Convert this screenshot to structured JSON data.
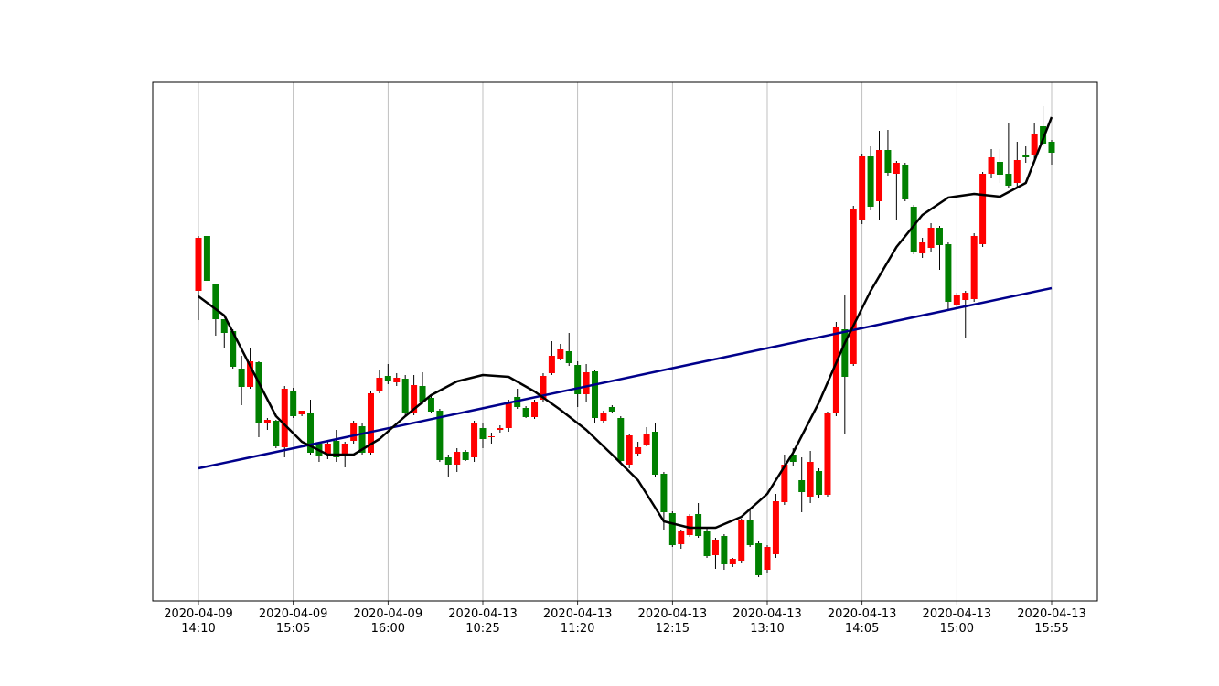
{
  "chart_data": {
    "type": "candlestick",
    "categories": [
      "2020-04-09\n14:10",
      null,
      null,
      null,
      null,
      null,
      null,
      null,
      null,
      null,
      null,
      "2020-04-09\n15:05",
      null,
      null,
      null,
      null,
      null,
      null,
      null,
      null,
      null,
      null,
      "2020-04-09\n16:00",
      null,
      null,
      null,
      null,
      null,
      null,
      null,
      null,
      null,
      null,
      "2020-04-13\n10:25",
      null,
      null,
      null,
      null,
      null,
      null,
      null,
      null,
      null,
      null,
      "2020-04-13\n11:20",
      null,
      null,
      null,
      null,
      null,
      null,
      null,
      null,
      null,
      null,
      "2020-04-13\n12:15",
      null,
      null,
      null,
      null,
      null,
      null,
      null,
      null,
      null,
      null,
      "2020-04-13\n13:10",
      null,
      null,
      null,
      null,
      null,
      null,
      null,
      null,
      null,
      null,
      "2020-04-13\n14:05",
      null,
      null,
      null,
      null,
      null,
      null,
      null,
      null,
      null,
      null,
      "2020-04-13\n15:00",
      null,
      null,
      null,
      null,
      null,
      null,
      null,
      null,
      null,
      null,
      "2020-04-13\n15:55"
    ],
    "open": [
      682,
      742,
      689,
      651,
      638,
      597,
      577,
      604,
      537,
      540,
      511,
      572,
      547,
      549,
      515,
      503,
      518,
      501,
      518,
      534,
      505,
      572,
      589,
      582,
      586,
      549,
      578,
      565,
      551,
      500,
      492,
      506,
      500,
      532,
      522,
      530,
      532,
      566,
      554,
      544,
      563,
      592,
      608,
      616,
      601,
      569,
      594,
      540,
      555,
      543,
      492,
      504,
      514,
      528,
      482,
      439,
      405,
      415,
      438,
      420,
      393,
      414,
      383,
      387,
      431,
      406,
      377,
      394,
      451,
      503,
      475,
      457,
      485,
      459,
      549,
      640,
      602,
      760,
      829,
      780,
      836,
      810,
      820,
      774,
      723,
      729,
      751,
      733,
      667,
      672,
      673,
      733,
      810,
      823,
      810,
      800,
      831,
      831,
      862,
      845
    ],
    "high": [
      742,
      742,
      689,
      651,
      640,
      611,
      620,
      605,
      543,
      541,
      578,
      576,
      551,
      563,
      517,
      517,
      530,
      517,
      540,
      537,
      572,
      595,
      602,
      592,
      590,
      590,
      593,
      568,
      553,
      503,
      510,
      508,
      540,
      537,
      527,
      535,
      563,
      575,
      556,
      563,
      592,
      627,
      624,
      636,
      605,
      602,
      596,
      551,
      557,
      545,
      526,
      517,
      533,
      538,
      484,
      441,
      421,
      438,
      450,
      422,
      412,
      416,
      390,
      433,
      445,
      408,
      404,
      460,
      503,
      510,
      500,
      507,
      488,
      550,
      648,
      678,
      775,
      832,
      840,
      857,
      858,
      824,
      822,
      776,
      740,
      756,
      753,
      735,
      680,
      682,
      745,
      812,
      837,
      837,
      865,
      845,
      840,
      865,
      884,
      847
    ],
    "low": [
      650,
      693,
      633,
      620,
      597,
      557,
      575,
      522,
      530,
      510,
      500,
      543,
      545,
      503,
      495,
      498,
      495,
      489,
      515,
      503,
      503,
      570,
      580,
      578,
      545,
      546,
      558,
      548,
      495,
      479,
      484,
      496,
      495,
      510,
      515,
      527,
      528,
      553,
      543,
      542,
      560,
      590,
      606,
      600,
      555,
      560,
      538,
      538,
      548,
      494,
      488,
      502,
      512,
      478,
      421,
      402,
      400,
      413,
      412,
      390,
      378,
      377,
      380,
      385,
      402,
      369,
      373,
      390,
      448,
      490,
      440,
      450,
      455,
      457,
      545,
      525,
      600,
      755,
      770,
      760,
      808,
      760,
      780,
      722,
      718,
      725,
      705,
      660,
      662,
      630,
      670,
      730,
      805,
      800,
      795,
      795,
      822,
      825,
      840,
      820
    ],
    "close": [
      740,
      693,
      651,
      636,
      599,
      577,
      605,
      537,
      541,
      512,
      575,
      545,
      551,
      505,
      502,
      515,
      500,
      515,
      537,
      505,
      570,
      587,
      583,
      587,
      548,
      579,
      560,
      550,
      497,
      492,
      506,
      497,
      538,
      520,
      523,
      532,
      559,
      555,
      544,
      561,
      589,
      611,
      618,
      603,
      569,
      593,
      543,
      549,
      550,
      496,
      524,
      511,
      525,
      481,
      440,
      404,
      419,
      436,
      414,
      392,
      410,
      383,
      389,
      431,
      404,
      371,
      402,
      452,
      492,
      495,
      462,
      495,
      459,
      549,
      642,
      588,
      772,
      829,
      774,
      836,
      811,
      822,
      782,
      724,
      735,
      751,
      732,
      670,
      678,
      680,
      742,
      810,
      828,
      809,
      797,
      825,
      828,
      854,
      843,
      833
    ],
    "up_color": "#ff0000",
    "down_color": "#008000",
    "lines": [
      {
        "color": "#00008b",
        "x": [
          0,
          99
        ],
        "values": [
          488,
          685
        ]
      },
      {
        "color": "#000000",
        "x": [
          0,
          3,
          6,
          9,
          12,
          15,
          18,
          21,
          24,
          27,
          30,
          33,
          36,
          39,
          42,
          45,
          48,
          51,
          54,
          57,
          60,
          63,
          66,
          69,
          72,
          75,
          78,
          81,
          84,
          87,
          90,
          93,
          96,
          99
        ],
        "values": [
          676,
          655,
          600,
          545,
          517,
          503,
          503,
          520,
          545,
          568,
          583,
          590,
          588,
          572,
          552,
          530,
          503,
          475,
          430,
          423,
          423,
          435,
          460,
          505,
          560,
          625,
          682,
          730,
          765,
          784,
          788,
          785,
          800,
          872
        ]
      }
    ],
    "ylim": [
      343,
      910
    ],
    "grid": true
  }
}
